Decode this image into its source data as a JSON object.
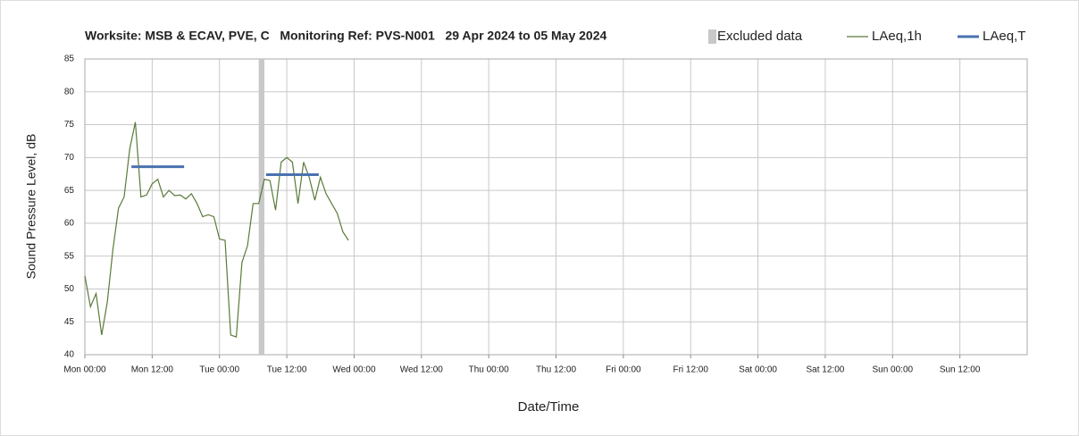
{
  "chart_data": {
    "type": "line",
    "title": "Worksite: MSB & ECAV, PVE, C   Monitoring Ref: PVS-N001   29 Apr 2024 to 05 May 2024",
    "x_label": "Date/Time",
    "y_label": "Sound Pressure Level, dB",
    "xlim": [
      0,
      168
    ],
    "xticks": [
      {
        "value": 0,
        "label": "Mon 00:00"
      },
      {
        "value": 12,
        "label": "Mon 12:00"
      },
      {
        "value": 24,
        "label": "Tue 00:00"
      },
      {
        "value": 36,
        "label": "Tue 12:00"
      },
      {
        "value": 48,
        "label": "Wed 00:00"
      },
      {
        "value": 60,
        "label": "Wed 12:00"
      },
      {
        "value": 72,
        "label": "Thu 00:00"
      },
      {
        "value": 84,
        "label": "Thu 12:00"
      },
      {
        "value": 96,
        "label": "Fri 00:00"
      },
      {
        "value": 108,
        "label": "Fri 12:00"
      },
      {
        "value": 120,
        "label": "Sat 00:00"
      },
      {
        "value": 132,
        "label": "Sat 12:00"
      },
      {
        "value": 144,
        "label": "Sun 00:00"
      },
      {
        "value": 156,
        "label": "Sun 12:00"
      }
    ],
    "ylim": [
      40,
      85
    ],
    "yticks": [
      40,
      45,
      50,
      55,
      60,
      65,
      70,
      75,
      80,
      85
    ],
    "grid": true,
    "legend": "top-right",
    "excluded": {
      "name": "Excluded data",
      "color": "#c8c8c8",
      "x": [
        31,
        32
      ]
    },
    "series": [
      {
        "name": "LAeq,1h",
        "color": "#5a7a3a",
        "x": [
          0,
          1,
          2,
          3,
          4,
          5,
          6,
          7,
          8,
          9,
          10,
          11,
          12,
          13,
          14,
          15,
          16,
          17,
          18,
          19,
          20,
          21,
          22,
          23,
          24,
          25,
          26,
          27,
          28,
          29,
          30,
          31,
          32,
          33,
          34,
          35,
          36,
          37,
          38,
          39,
          40,
          41,
          42,
          43,
          44,
          45,
          46,
          47
        ],
        "values": [
          52,
          47.3,
          49.3,
          43,
          48,
          56,
          62.3,
          64,
          71.3,
          75.4,
          64,
          64.3,
          66,
          66.7,
          64,
          65,
          64.2,
          64.3,
          63.7,
          64.5,
          63,
          61,
          61.3,
          61,
          57.6,
          57.4,
          43,
          42.7,
          54,
          56.6,
          63,
          63,
          66.7,
          66.5,
          62,
          69.3,
          70,
          69.3,
          63,
          69.3,
          67,
          63.5,
          67,
          64.5,
          63,
          61.5,
          58.7,
          57.4
        ]
      },
      {
        "name": "LAeq,T",
        "color": "#4a72b0",
        "x": [
          8.3,
          17.7,
          25,
          32.3,
          41.7
        ],
        "values": [
          68.6,
          68.6,
          null,
          67.4,
          67.4
        ]
      }
    ]
  }
}
